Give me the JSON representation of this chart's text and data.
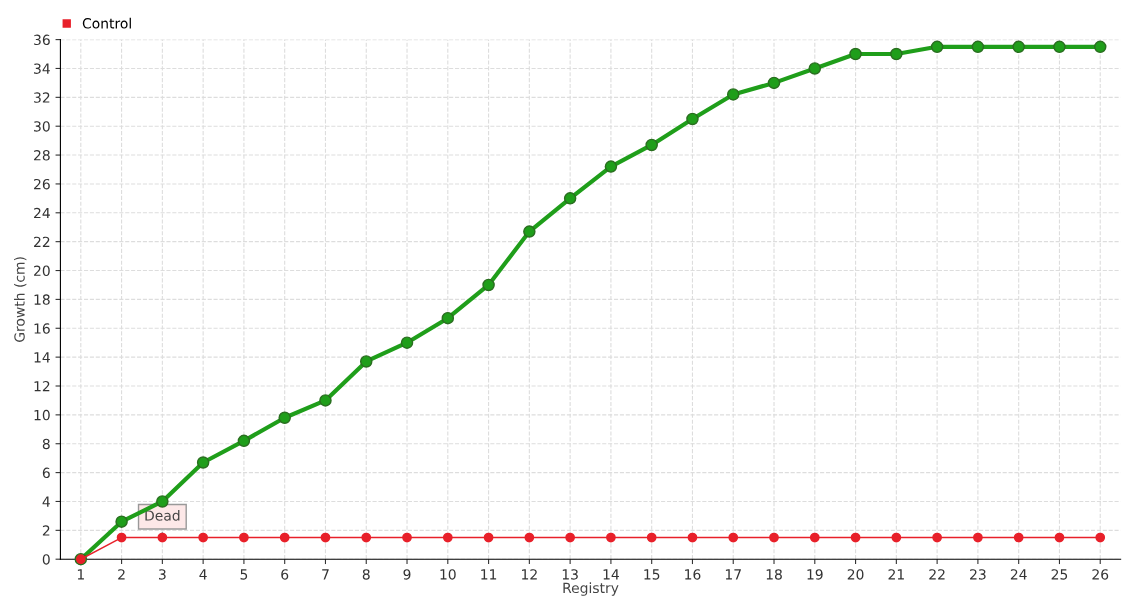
{
  "chart_data": {
    "type": "line",
    "xlabel": "Registry",
    "ylabel": "Growth (cm)",
    "categories": [
      "1",
      "2",
      "3",
      "4",
      "5",
      "6",
      "7",
      "8",
      "9",
      "10",
      "11",
      "12",
      "13",
      "14",
      "15",
      "16",
      "17",
      "18",
      "19",
      "20",
      "21",
      "22",
      "23",
      "24",
      "25",
      "26"
    ],
    "series": [
      {
        "color": "#1f9e1a",
        "values": [
          0,
          2.6,
          4.0,
          6.7,
          8.2,
          9.8,
          11,
          13.7,
          15,
          16.7,
          19,
          22.7,
          25,
          27.2,
          28.7,
          30.5,
          32.2,
          33,
          34,
          35,
          35,
          35.5,
          35.5,
          35.5,
          35.5,
          35.5
        ]
      },
      {
        "name": "Control",
        "color": "#e8202a",
        "values": [
          0,
          1.5,
          1.5,
          1.5,
          1.5,
          1.5,
          1.5,
          1.5,
          1.5,
          1.5,
          1.5,
          1.5,
          1.5,
          1.5,
          1.5,
          1.5,
          1.5,
          1.5,
          1.5,
          1.5,
          1.5,
          1.5,
          1.5,
          1.5,
          1.5,
          1.5
        ]
      }
    ],
    "annotations": [
      {
        "text": "Dead",
        "x": "3",
        "y": 1.5
      }
    ],
    "ylim": [
      0,
      36
    ],
    "yticks": [
      0,
      2,
      4,
      6,
      8,
      10,
      12,
      14,
      16,
      18,
      20,
      22,
      24,
      26,
      28,
      30,
      32,
      34,
      36
    ],
    "grid": true,
    "legend": "top left",
    "marker": "circle",
    "line_style": "solid"
  }
}
